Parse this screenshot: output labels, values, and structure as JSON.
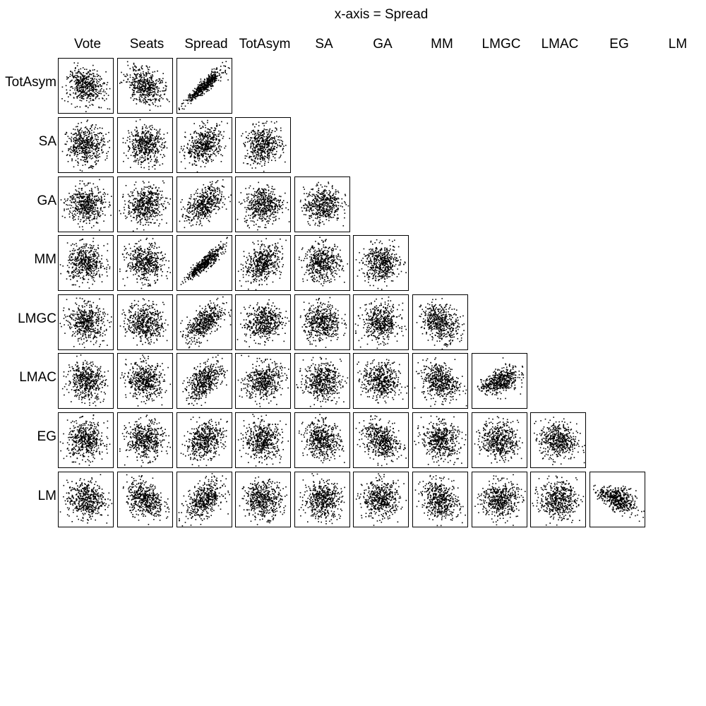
{
  "chart_data": {
    "type": "scatter",
    "subtype": "scatterplot-matrix (lower triangle, 8 rows x 11 columns)",
    "title": "x-axis = Spread",
    "columns": [
      "Vote",
      "Seats",
      "Spread",
      "TotAsym",
      "SA",
      "GA",
      "MM",
      "LMGC",
      "LMAC",
      "EG",
      "LM"
    ],
    "rows": [
      "TotAsym",
      "SA",
      "GA",
      "MM",
      "LMGC",
      "LMAC",
      "EG",
      "LM"
    ],
    "axis_tick_labels": "none shown",
    "grid": false,
    "legend": "none",
    "marker": "small black square dots",
    "points_per_panel_approx": 500,
    "panels": [
      {
        "row": "TotAsym",
        "col": "Vote",
        "pattern": "diffuse",
        "corr": -0.2
      },
      {
        "row": "TotAsym",
        "col": "Seats",
        "pattern": "clustered with horizontal streaks",
        "corr": -0.3
      },
      {
        "row": "TotAsym",
        "col": "Spread",
        "pattern": "strong positive, fan-shaped",
        "corr": 0.85
      },
      {
        "row": "SA",
        "col": "Vote",
        "pattern": "diffuse",
        "corr": 0.0
      },
      {
        "row": "SA",
        "col": "Seats",
        "pattern": "diffuse with horizontal streaks",
        "corr": 0.0
      },
      {
        "row": "SA",
        "col": "Spread",
        "pattern": "weak positive with diagonal streaks",
        "corr": 0.3
      },
      {
        "row": "SA",
        "col": "TotAsym",
        "pattern": "diffuse with horizontal streak",
        "corr": 0.1
      },
      {
        "row": "GA",
        "col": "Vote",
        "pattern": "diffuse",
        "corr": 0.0
      },
      {
        "row": "GA",
        "col": "Seats",
        "pattern": "diffuse with horizontal streaks",
        "corr": 0.1
      },
      {
        "row": "GA",
        "col": "Spread",
        "pattern": "positive with diagonal streaks",
        "corr": 0.45
      },
      {
        "row": "GA",
        "col": "TotAsym",
        "pattern": "diffuse",
        "corr": 0.1
      },
      {
        "row": "GA",
        "col": "SA",
        "pattern": "diffuse with horizontal streaks",
        "corr": 0.1
      },
      {
        "row": "MM",
        "col": "Vote",
        "pattern": "diffuse",
        "corr": 0.0
      },
      {
        "row": "MM",
        "col": "Seats",
        "pattern": "diffuse",
        "corr": -0.1
      },
      {
        "row": "MM",
        "col": "Spread",
        "pattern": "strong positive, fan-shaped",
        "corr": 0.85
      },
      {
        "row": "MM",
        "col": "TotAsym",
        "pattern": "positive",
        "corr": 0.35
      },
      {
        "row": "MM",
        "col": "SA",
        "pattern": "diffuse",
        "corr": 0.0
      },
      {
        "row": "MM",
        "col": "GA",
        "pattern": "diffuse",
        "corr": 0.05
      },
      {
        "row": "LMGC",
        "col": "Vote",
        "pattern": "diffuse",
        "corr": -0.1
      },
      {
        "row": "LMGC",
        "col": "Seats",
        "pattern": "diffuse",
        "corr": -0.1
      },
      {
        "row": "LMGC",
        "col": "Spread",
        "pattern": "positive",
        "corr": 0.55
      },
      {
        "row": "LMGC",
        "col": "TotAsym",
        "pattern": "weak positive",
        "corr": 0.2
      },
      {
        "row": "LMGC",
        "col": "SA",
        "pattern": "diffuse",
        "corr": 0.0
      },
      {
        "row": "LMGC",
        "col": "GA",
        "pattern": "diffuse",
        "corr": 0.0
      },
      {
        "row": "LMGC",
        "col": "MM",
        "pattern": "weak negative",
        "corr": -0.25
      },
      {
        "row": "LMAC",
        "col": "Vote",
        "pattern": "diffuse",
        "corr": -0.1
      },
      {
        "row": "LMAC",
        "col": "Seats",
        "pattern": "diffuse",
        "corr": -0.1
      },
      {
        "row": "LMAC",
        "col": "Spread",
        "pattern": "positive",
        "corr": 0.55
      },
      {
        "row": "LMAC",
        "col": "TotAsym",
        "pattern": "weak positive",
        "corr": 0.15
      },
      {
        "row": "LMAC",
        "col": "SA",
        "pattern": "diffuse",
        "corr": 0.0
      },
      {
        "row": "LMAC",
        "col": "GA",
        "pattern": "diffuse",
        "corr": -0.1
      },
      {
        "row": "LMAC",
        "col": "MM",
        "pattern": "weak negative",
        "corr": -0.2
      },
      {
        "row": "LMAC",
        "col": "LMGC",
        "pattern": "funnel widening to the right",
        "corr": 0.35
      },
      {
        "row": "EG",
        "col": "Vote",
        "pattern": "diffuse",
        "corr": 0.0
      },
      {
        "row": "EG",
        "col": "Seats",
        "pattern": "diffuse",
        "corr": 0.0
      },
      {
        "row": "EG",
        "col": "Spread",
        "pattern": "weak positive",
        "corr": 0.3
      },
      {
        "row": "EG",
        "col": "TotAsym",
        "pattern": "diffuse",
        "corr": 0.0
      },
      {
        "row": "EG",
        "col": "SA",
        "pattern": "diffuse",
        "corr": -0.15
      },
      {
        "row": "EG",
        "col": "GA",
        "pattern": "weak negative",
        "corr": -0.3
      },
      {
        "row": "EG",
        "col": "MM",
        "pattern": "diffuse",
        "corr": -0.1
      },
      {
        "row": "EG",
        "col": "LMGC",
        "pattern": "diffuse",
        "corr": -0.1
      },
      {
        "row": "EG",
        "col": "LMAC",
        "pattern": "diffuse",
        "corr": -0.1
      },
      {
        "row": "LM",
        "col": "Vote",
        "pattern": "diffuse",
        "corr": 0.0
      },
      {
        "row": "LM",
        "col": "Seats",
        "pattern": "weak negative",
        "corr": -0.3
      },
      {
        "row": "LM",
        "col": "Spread",
        "pattern": "positive",
        "corr": 0.45
      },
      {
        "row": "LM",
        "col": "TotAsym",
        "pattern": "diffuse",
        "corr": 0.0
      },
      {
        "row": "LM",
        "col": "SA",
        "pattern": "diffuse",
        "corr": 0.0
      },
      {
        "row": "LM",
        "col": "GA",
        "pattern": "diffuse",
        "corr": 0.0
      },
      {
        "row": "LM",
        "col": "MM",
        "pattern": "weak negative",
        "corr": -0.2
      },
      {
        "row": "LM",
        "col": "LMGC",
        "pattern": "diffuse",
        "corr": 0.0
      },
      {
        "row": "LM",
        "col": "LMAC",
        "pattern": "diffuse",
        "corr": 0.0
      },
      {
        "row": "LM",
        "col": "EG",
        "pattern": "negative, funnel shape",
        "corr": -0.35
      }
    ]
  }
}
